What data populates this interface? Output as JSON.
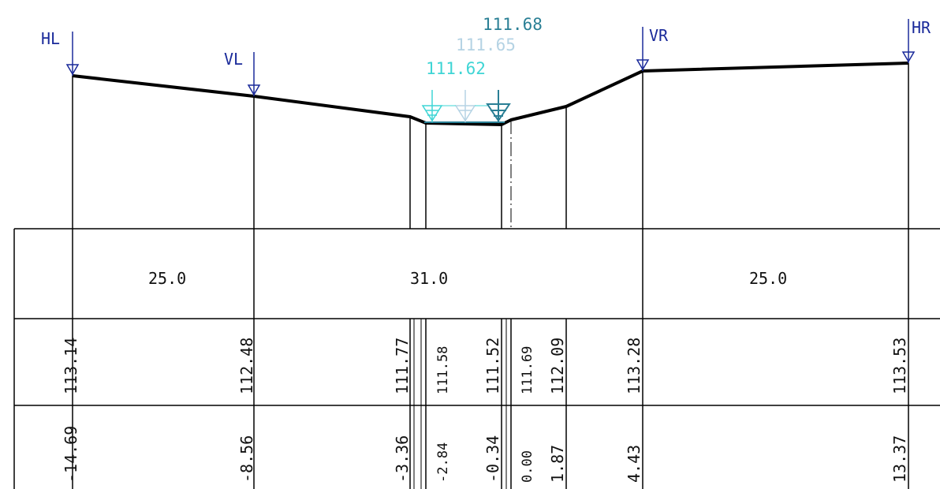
{
  "markers": [
    {
      "id": "hl",
      "label": "HL"
    },
    {
      "id": "vl",
      "label": "VL"
    },
    {
      "id": "vr",
      "label": "VR"
    },
    {
      "id": "hr",
      "label": "HR"
    }
  ],
  "water_levels": [
    {
      "value": "111.68",
      "color": "#2a7f95"
    },
    {
      "value": "111.65",
      "color": "#b5d3e4"
    },
    {
      "value": "111.62",
      "color": "#3fd5d5"
    }
  ],
  "spacings": [
    "25.0",
    "31.0",
    "25.0"
  ],
  "elevations": [
    "113.14",
    "112.48",
    "111.77",
    "111.58",
    "111.52",
    "111.69",
    "112.09",
    "113.28",
    "113.53"
  ],
  "offsets": [
    "-14.69",
    "-8.56",
    "-3.36",
    "-2.84",
    "-0.34",
    "0.00",
    "1.87",
    "4.43",
    "13.37"
  ],
  "colors": {
    "marker": "#1a2a9a",
    "line": "#000000"
  }
}
